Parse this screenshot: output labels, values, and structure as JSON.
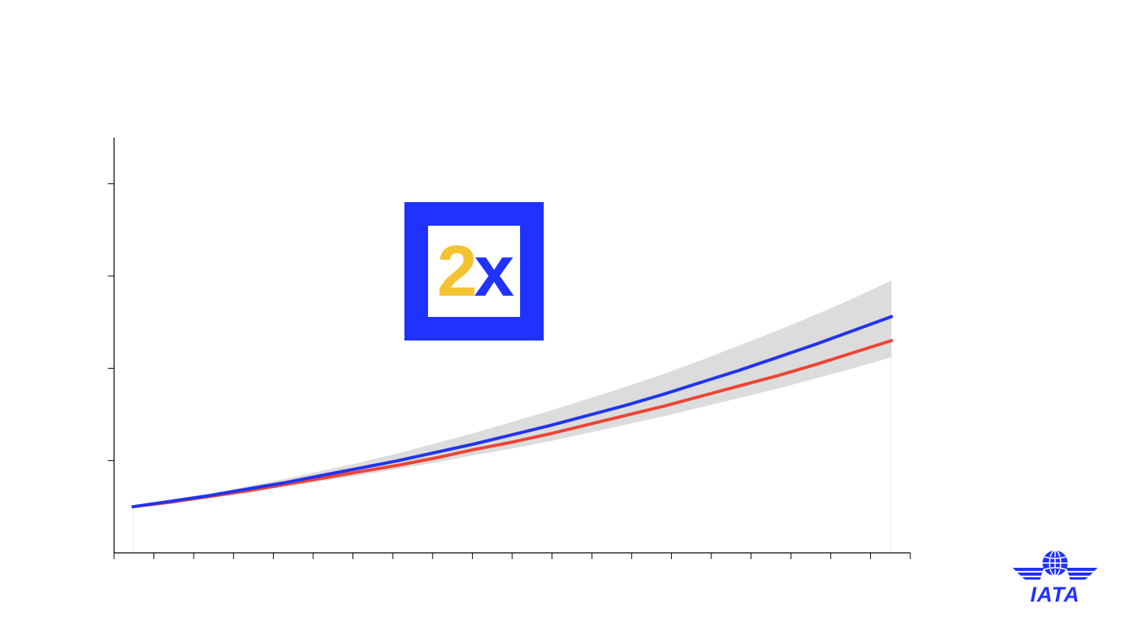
{
  "colors": {
    "band": "#dcdcdc",
    "upper_line": "#2233ee",
    "lower_line": "#ee4433",
    "axis": "#000000",
    "badge_bg": "#1f32ff",
    "badge_digit": "#f5c331",
    "badge_letter": "#1f32ff",
    "logo": "#1f32ff"
  },
  "badge": {
    "digit": "2",
    "letter": "x"
  },
  "logo": {
    "text": "IATA",
    "icon": "iata-globe-wings-icon"
  },
  "chart_data": {
    "type": "line",
    "x": [
      0,
      1,
      2,
      3,
      4,
      5,
      6,
      7,
      8,
      9,
      10,
      11,
      12,
      13,
      14,
      15,
      16,
      17,
      18,
      19,
      20
    ],
    "series": [
      {
        "values": [
          1.0,
          1.06,
          1.12,
          1.19,
          1.26,
          1.34,
          1.42,
          1.5,
          1.59,
          1.68,
          1.78,
          1.88,
          1.99,
          2.1,
          2.22,
          2.35,
          2.48,
          2.62,
          2.76,
          2.91,
          3.06
        ],
        "color": "#2233ee"
      },
      {
        "values": [
          1.0,
          1.05,
          1.11,
          1.17,
          1.24,
          1.31,
          1.38,
          1.45,
          1.53,
          1.62,
          1.7,
          1.79,
          1.89,
          1.99,
          2.09,
          2.2,
          2.31,
          2.42,
          2.54,
          2.67,
          2.8
        ],
        "color": "#ee4433"
      }
    ],
    "band": {
      "upper": [
        1.0,
        1.07,
        1.14,
        1.22,
        1.3,
        1.39,
        1.48,
        1.58,
        1.69,
        1.8,
        1.92,
        2.04,
        2.17,
        2.3,
        2.44,
        2.59,
        2.75,
        2.91,
        3.08,
        3.26,
        3.45
      ],
      "lower": [
        1.0,
        1.05,
        1.1,
        1.16,
        1.22,
        1.28,
        1.34,
        1.41,
        1.48,
        1.56,
        1.63,
        1.71,
        1.8,
        1.89,
        1.98,
        2.08,
        2.18,
        2.28,
        2.39,
        2.5,
        2.62
      ]
    },
    "ylim": [
      0.5,
      5.0
    ],
    "yticks": [
      1.5,
      2.5,
      3.5,
      4.5
    ],
    "xticks": 21,
    "grid": false,
    "legend": "none"
  }
}
